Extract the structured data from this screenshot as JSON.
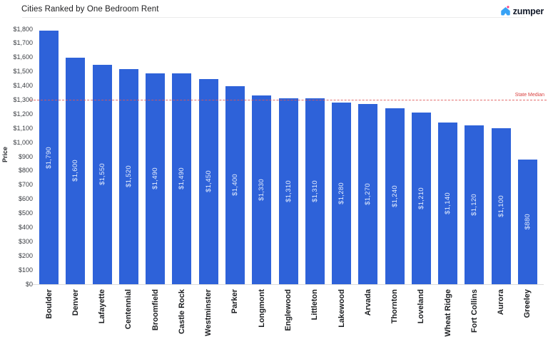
{
  "header": {
    "title": "Cities Ranked by One Bedroom Rent",
    "brand": "zumper"
  },
  "chart_data": {
    "type": "bar",
    "title": "Cities Ranked by One Bedroom Rent",
    "xlabel": "",
    "ylabel": "Price",
    "ylim": [
      0,
      1800
    ],
    "y_tick_step": 100,
    "y_tick_labels": [
      "$1,800",
      "$1,700",
      "$1,600",
      "$1,500",
      "$1,400",
      "$1,300",
      "$1,200",
      "$1,100",
      "$1,000",
      "$900",
      "$800",
      "$700",
      "$600",
      "$500",
      "$400",
      "$300",
      "$200",
      "$100",
      "$0"
    ],
    "grid": false,
    "legend": false,
    "categories": [
      "Boulder",
      "Denver",
      "Lafayette",
      "Centennial",
      "Broomfield",
      "Castle Rock",
      "Westminster",
      "Parker",
      "Longmont",
      "Englewood",
      "Littleton",
      "Lakewood",
      "Arvada",
      "Thornton",
      "Loveland",
      "Wheat Ridge",
      "Fort Collins",
      "Aurora",
      "Greeley"
    ],
    "values": [
      1790,
      1600,
      1550,
      1520,
      1490,
      1490,
      1450,
      1400,
      1330,
      1310,
      1310,
      1280,
      1270,
      1240,
      1210,
      1140,
      1120,
      1100,
      880
    ],
    "value_labels": [
      "$1,790",
      "$1,600",
      "$1,550",
      "$1,520",
      "$1,490",
      "$1,490",
      "$1,450",
      "$1,400",
      "$1,330",
      "$1,310",
      "$1,310",
      "$1,280",
      "$1,270",
      "$1,240",
      "$1,210",
      "$1,140",
      "$1,120",
      "$1,100",
      "$880"
    ],
    "reference_line": {
      "label": "State Median",
      "value": 1300,
      "style": "dashed"
    },
    "colors": {
      "bar": "#2e62d9",
      "bar_label": "#e4edfd",
      "reference_line": "#e05555",
      "reference_label": "#d9403f",
      "axis_text": "#3a3d42",
      "category_text": "#1c1e21",
      "title_text": "#1d1d1f",
      "baseline": "#dcdcdc",
      "header_rule": "#ebebeb",
      "logo_house": "#38a2f5",
      "logo_dot": "#fd3e81",
      "logo_text": "#101828"
    }
  }
}
